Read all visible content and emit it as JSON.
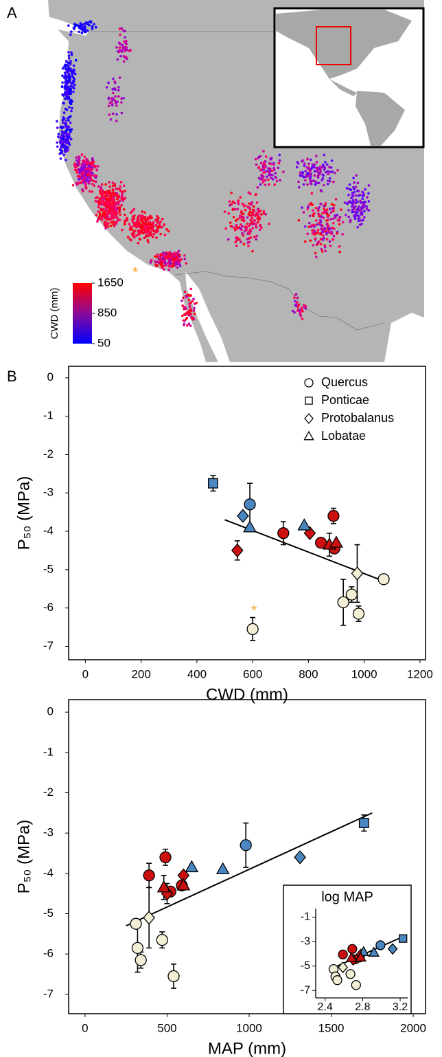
{
  "chart_data": [
    {
      "type": "map",
      "panel": "A",
      "annotation": "*",
      "colorbar": {
        "label": "CWD (mm)",
        "lim": [
          50,
          1650
        ],
        "ticks": [
          1650,
          850,
          50
        ]
      }
    },
    {
      "type": "scatter",
      "panel": "B",
      "xlabel": "CWD (mm)",
      "ylabel": "P₅₀ (MPa)",
      "annotation": "*",
      "xlim": [
        -60,
        1220
      ],
      "ylim": [
        -7.35,
        0.3
      ],
      "xticks": [
        0,
        200,
        400,
        600,
        800,
        1000,
        1200
      ],
      "yticks": [
        0,
        -1,
        -2,
        -3,
        -4,
        -5,
        -6,
        -7
      ],
      "legend": "upper right",
      "series": [
        {
          "name": "Quercus",
          "marker": "circle",
          "x": [
            590,
            710,
            845,
            890,
            893,
            1070,
            955,
            925,
            980,
            600
          ],
          "values": [
            -3.3,
            -4.05,
            -4.3,
            -3.6,
            -4.45,
            -5.25,
            -5.65,
            -5.85,
            -6.15,
            -6.55
          ],
          "errors": [
            0.55,
            0.3,
            null,
            0.2,
            null,
            null,
            0.2,
            0.6,
            0.2,
            0.3
          ],
          "colors": [
            "#4a86c0",
            "#cc1010",
            "#cc1010",
            "#cc1010",
            "#cc1010",
            "#f3efd6",
            "#f3efd6",
            "#f3efd6",
            "#f3efd6",
            "#f3efd6"
          ]
        },
        {
          "name": "Ponticae",
          "marker": "square",
          "x": [
            458
          ],
          "values": [
            -2.75
          ],
          "errors": [
            0.2
          ],
          "colors": [
            "#4a86c0"
          ]
        },
        {
          "name": "Protobalanus",
          "marker": "diamond",
          "x": [
            565,
            545,
            805,
            975
          ],
          "values": [
            -3.6,
            -4.5,
            -4.05,
            -5.1
          ],
          "errors": [
            null,
            0.25,
            null,
            0.75
          ],
          "colors": [
            "#4a86c0",
            "#cc1010",
            "#cc1010",
            "#f3efd6"
          ]
        },
        {
          "name": "Lobatae",
          "marker": "triangle",
          "x": [
            590,
            785,
            875,
            900
          ],
          "values": [
            -3.9,
            -3.85,
            -4.35,
            -4.3
          ],
          "errors": [
            null,
            null,
            0.3,
            null
          ],
          "colors": [
            "#4a86c0",
            "#4a86c0",
            "#cc1010",
            "#cc1010"
          ]
        }
      ],
      "fit": {
        "x": [
          500,
          1070
        ],
        "y": [
          -3.7,
          -5.3
        ]
      }
    },
    {
      "type": "scatter",
      "xlabel": "MAP (mm)",
      "ylabel": "P₅₀ (MPa)",
      "xlim": [
        -100,
        2075
      ],
      "ylim": [
        -7.48,
        0.31
      ],
      "xticks": [
        0,
        500,
        1000,
        1500,
        2000
      ],
      "yticks": [
        0,
        -1,
        -2,
        -3,
        -4,
        -5,
        -6,
        -7
      ],
      "series": [
        {
          "marker": "circle",
          "x": [
            980,
            390,
            590,
            490,
            520,
            310,
            470,
            320,
            340,
            540
          ],
          "values": [
            -3.3,
            -4.05,
            -4.3,
            -3.6,
            -4.45,
            -5.25,
            -5.65,
            -5.85,
            -6.15,
            -6.55
          ],
          "errors": [
            0.55,
            0.3,
            null,
            0.2,
            null,
            null,
            0.2,
            0.6,
            0.2,
            0.3
          ],
          "colors": [
            "#4a86c0",
            "#cc1010",
            "#cc1010",
            "#cc1010",
            "#cc1010",
            "#f3efd6",
            "#f3efd6",
            "#f3efd6",
            "#f3efd6",
            "#f3efd6"
          ]
        },
        {
          "marker": "square",
          "x": [
            1700
          ],
          "values": [
            -2.75
          ],
          "errors": [
            0.2
          ],
          "colors": [
            "#4a86c0"
          ]
        },
        {
          "marker": "diamond",
          "x": [
            1310,
            500,
            600,
            390
          ],
          "values": [
            -3.6,
            -4.5,
            -4.05,
            -5.1
          ],
          "errors": [
            null,
            0.25,
            null,
            0.75
          ],
          "colors": [
            "#4a86c0",
            "#cc1010",
            "#cc1010",
            "#f3efd6"
          ]
        },
        {
          "marker": "triangle",
          "x": [
            840,
            650,
            480,
            600
          ],
          "values": [
            -3.9,
            -3.85,
            -4.35,
            -4.3
          ],
          "errors": [
            null,
            null,
            0.3,
            null
          ],
          "colors": [
            "#4a86c0",
            "#4a86c0",
            "#cc1010",
            "#cc1010"
          ]
        }
      ],
      "fit": {
        "x": [
          250,
          1750
        ],
        "y": [
          -5.3,
          -2.5
        ]
      }
    },
    {
      "type": "scatter",
      "title": "log MAP",
      "xlim": [
        2.3,
        3.28
      ],
      "ylim": [
        -7.6,
        -0.3
      ],
      "xticks": [
        2.4,
        2.8,
        3.2
      ],
      "yticks": [
        -1,
        -3,
        -5,
        -7
      ],
      "series": [
        {
          "marker": "circle",
          "x": [
            2.99,
            2.59,
            2.77,
            2.69,
            2.72,
            2.49,
            2.67,
            2.51,
            2.53,
            2.73
          ],
          "values": [
            -3.3,
            -4.05,
            -4.3,
            -3.6,
            -4.45,
            -5.25,
            -5.65,
            -5.85,
            -6.15,
            -6.55
          ],
          "colors": [
            "#4a86c0",
            "#cc1010",
            "#cc1010",
            "#cc1010",
            "#cc1010",
            "#f3efd6",
            "#f3efd6",
            "#f3efd6",
            "#f3efd6",
            "#f3efd6"
          ]
        },
        {
          "marker": "square",
          "x": [
            3.23
          ],
          "values": [
            -2.75
          ],
          "colors": [
            "#4a86c0"
          ]
        },
        {
          "marker": "diamond",
          "x": [
            3.12,
            2.7,
            2.78,
            2.59
          ],
          "values": [
            -3.6,
            -4.5,
            -4.05,
            -5.1
          ],
          "colors": [
            "#4a86c0",
            "#cc1010",
            "#cc1010",
            "#f3efd6"
          ]
        },
        {
          "marker": "triangle",
          "x": [
            2.92,
            2.81,
            2.68,
            2.78
          ],
          "values": [
            -3.9,
            -3.85,
            -4.35,
            -4.3
          ],
          "colors": [
            "#4a86c0",
            "#4a86c0",
            "#cc1010",
            "#cc1010"
          ]
        }
      ],
      "fit": {
        "x": [
          2.5,
          3.2
        ],
        "y": [
          -5.1,
          -2.7
        ]
      }
    }
  ]
}
